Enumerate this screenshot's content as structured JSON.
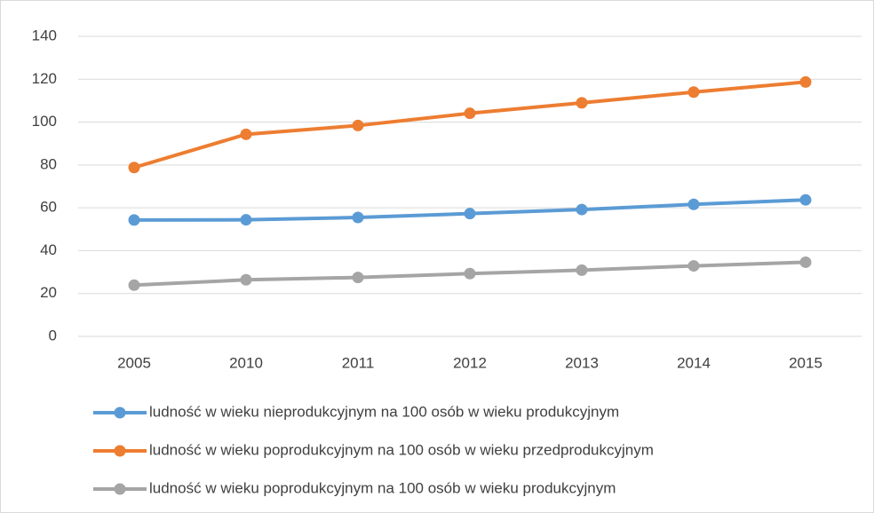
{
  "chart_data": {
    "type": "line",
    "categories": [
      "2005",
      "2010",
      "2011",
      "2012",
      "2013",
      "2014",
      "2015"
    ],
    "series": [
      {
        "name": "ludność w wieku nieprodukcyjnym na 100 osób w wieku produkcyjnym",
        "color": "#5b9bd5",
        "values": [
          54.3,
          54.4,
          55.5,
          57.3,
          59.2,
          61.6,
          63.7
        ]
      },
      {
        "name": "ludność w wieku poprodukcyjnym na 100 osób w wieku przedprodukcyjnym",
        "color": "#ed7d31",
        "values": [
          78.8,
          94.3,
          98.4,
          104.1,
          109.0,
          114.0,
          118.7
        ]
      },
      {
        "name": "ludność w wieku poprodukcyjnym na 100 osób w wieku produkcyjnym",
        "color": "#a5a5a5",
        "values": [
          23.9,
          26.4,
          27.5,
          29.3,
          30.9,
          32.9,
          34.6
        ]
      }
    ],
    "ylim": [
      0,
      140
    ],
    "yticks": [
      0,
      20,
      40,
      60,
      80,
      100,
      120,
      140
    ],
    "grid": true,
    "legend": "bottom"
  }
}
